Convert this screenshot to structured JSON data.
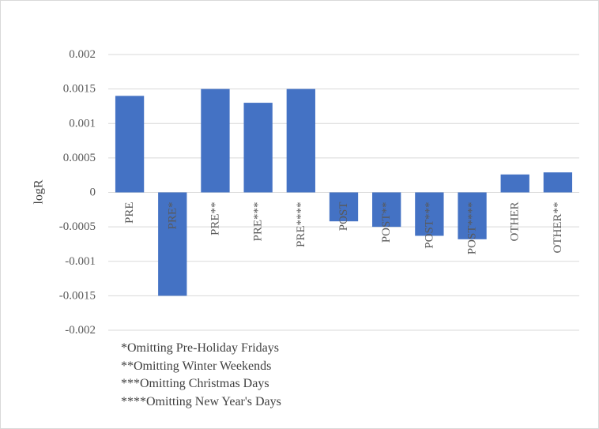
{
  "chart_data": {
    "type": "bar",
    "title": "",
    "xlabel": "",
    "ylabel": "logR",
    "ylim": [
      -0.002,
      0.002
    ],
    "yticks": [
      0.002,
      0.0015,
      0.001,
      0.0005,
      0,
      -0.0005,
      -0.001,
      -0.0015,
      -0.002
    ],
    "ytick_labels": [
      "0.002",
      "0.0015",
      "0.001",
      "0.0005",
      "0",
      "-0.0005",
      "-0.001",
      "-0.0015",
      "-0.002"
    ],
    "categories": [
      "PRE",
      "PRE*",
      "PRE**",
      "PRE***",
      "PRE****",
      "POST",
      "POST**",
      "POST***",
      "POST****",
      "OTHER",
      "OTHER**"
    ],
    "values": [
      0.0014,
      -0.0015,
      0.0015,
      0.0013,
      0.0015,
      -0.00042,
      -0.0005,
      -0.00063,
      -0.00068,
      0.00026,
      0.00029
    ],
    "grid": true,
    "bar_color": "#4472c4",
    "grid_color": "#d9d9d9"
  },
  "footnotes": [
    "*Omitting Pre-Holiday Fridays",
    "**Omitting Winter Weekends",
    "***Omitting Christmas Days",
    "****Omitting New Year's Days"
  ]
}
